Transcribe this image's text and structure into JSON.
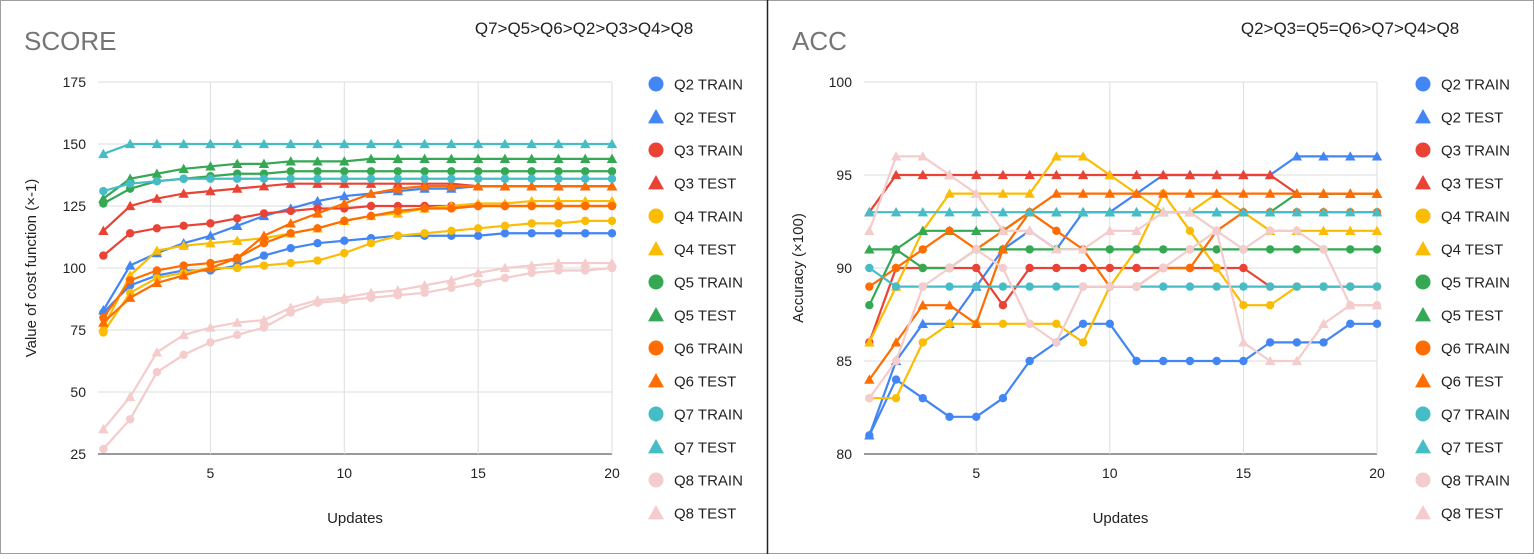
{
  "chart_data": [
    {
      "type": "line",
      "title": "SCORE",
      "subtitle": "Q7>Q5>Q6>Q2>Q3>Q4>Q8",
      "xlabel": "Updates",
      "ylabel": "Value of cost function (×-1)",
      "xlim": [
        0.8,
        20
      ],
      "ylim": [
        25,
        175
      ],
      "xticks": [
        "5",
        "10",
        "15",
        "20"
      ],
      "yticks": [
        "25",
        "50",
        "75",
        "100",
        "125",
        "150",
        "175"
      ],
      "grid": true,
      "legend": "right",
      "x": [
        1,
        2,
        3,
        4,
        5,
        6,
        7,
        8,
        9,
        10,
        11,
        12,
        13,
        14,
        15,
        16,
        17,
        18,
        19,
        20
      ],
      "series": [
        {
          "name": "Q2 TRAIN",
          "marker": "circle",
          "color": "#4285f4",
          "values": [
            82,
            93,
            97,
            99,
            99,
            101,
            105,
            108,
            110,
            111,
            112,
            113,
            113,
            113,
            113,
            114,
            114,
            114,
            114,
            114
          ]
        },
        {
          "name": "Q2 TEST",
          "marker": "triangle",
          "color": "#4285f4",
          "values": [
            83,
            101,
            106,
            110,
            113,
            117,
            121,
            124,
            127,
            129,
            130,
            131,
            132,
            132,
            133,
            133,
            133,
            133,
            133,
            133
          ]
        },
        {
          "name": "Q3 TRAIN",
          "marker": "circle",
          "color": "#ea4335",
          "values": [
            105,
            114,
            116,
            117,
            118,
            120,
            122,
            123,
            124,
            124,
            125,
            125,
            125,
            125,
            125,
            125,
            125,
            125,
            125,
            125
          ]
        },
        {
          "name": "Q3 TEST",
          "marker": "triangle",
          "color": "#ea4335",
          "values": [
            115,
            125,
            128,
            130,
            131,
            132,
            133,
            134,
            134,
            134,
            134,
            134,
            134,
            134,
            133,
            133,
            133,
            133,
            133,
            133
          ]
        },
        {
          "name": "Q4 TRAIN",
          "marker": "circle",
          "color": "#fbbc04",
          "values": [
            74,
            90,
            96,
            98,
            100,
            100,
            101,
            102,
            103,
            106,
            110,
            113,
            114,
            115,
            116,
            117,
            118,
            118,
            119,
            119
          ]
        },
        {
          "name": "Q4 TEST",
          "marker": "triangle",
          "color": "#fbbc04",
          "values": [
            76,
            97,
            107,
            109,
            110,
            111,
            112,
            114,
            116,
            119,
            121,
            122,
            124,
            125,
            126,
            126,
            127,
            127,
            127,
            127
          ]
        },
        {
          "name": "Q5 TRAIN",
          "marker": "circle",
          "color": "#34a853",
          "values": [
            126,
            132,
            135,
            136,
            137,
            138,
            138,
            139,
            139,
            139,
            139,
            139,
            139,
            139,
            139,
            139,
            139,
            139,
            139,
            139
          ]
        },
        {
          "name": "Q5 TEST",
          "marker": "triangle",
          "color": "#34a853",
          "values": [
            128,
            136,
            138,
            140,
            141,
            142,
            142,
            143,
            143,
            143,
            144,
            144,
            144,
            144,
            144,
            144,
            144,
            144,
            144,
            144
          ]
        },
        {
          "name": "Q6 TRAIN",
          "marker": "circle",
          "color": "#ff6d01",
          "values": [
            80,
            95,
            99,
            101,
            102,
            104,
            110,
            114,
            116,
            119,
            121,
            123,
            124,
            124,
            125,
            125,
            125,
            125,
            125,
            125
          ]
        },
        {
          "name": "Q6 TEST",
          "marker": "triangle",
          "color": "#ff6d01",
          "values": [
            78,
            88,
            94,
            97,
            100,
            104,
            113,
            118,
            122,
            126,
            130,
            132,
            133,
            133,
            133,
            133,
            133,
            133,
            133,
            133
          ]
        },
        {
          "name": "Q7 TRAIN",
          "marker": "circle",
          "color": "#46bdc6",
          "values": [
            131,
            134,
            135,
            136,
            136,
            136,
            136,
            136,
            136,
            136,
            136,
            136,
            136,
            136,
            136,
            136,
            136,
            136,
            136,
            136
          ]
        },
        {
          "name": "Q7 TEST",
          "marker": "triangle",
          "color": "#46bdc6",
          "values": [
            146,
            150,
            150,
            150,
            150,
            150,
            150,
            150,
            150,
            150,
            150,
            150,
            150,
            150,
            150,
            150,
            150,
            150,
            150,
            150
          ]
        },
        {
          "name": "Q8 TRAIN",
          "marker": "circle",
          "color": "#f4cccc",
          "values": [
            27,
            39,
            58,
            65,
            70,
            73,
            76,
            82,
            86,
            87,
            88,
            89,
            90,
            92,
            94,
            96,
            98,
            99,
            99,
            100
          ]
        },
        {
          "name": "Q8 TEST",
          "marker": "triangle",
          "color": "#f4cccc",
          "values": [
            35,
            48,
            66,
            73,
            76,
            78,
            79,
            84,
            87,
            88,
            90,
            91,
            93,
            95,
            98,
            100,
            101,
            102,
            102,
            102
          ]
        }
      ]
    },
    {
      "type": "line",
      "title": "ACC",
      "subtitle": "Q2>Q3=Q5=Q6>Q7>Q4>Q8",
      "xlabel": "Updates",
      "ylabel": "Accuracy (×100)",
      "xlim": [
        0.8,
        20
      ],
      "ylim": [
        80,
        100
      ],
      "xticks": [
        "5",
        "10",
        "15",
        "20"
      ],
      "yticks": [
        "80",
        "85",
        "90",
        "95",
        "100"
      ],
      "grid": true,
      "legend": "right",
      "x": [
        1,
        2,
        3,
        4,
        5,
        6,
        7,
        8,
        9,
        10,
        11,
        12,
        13,
        14,
        15,
        16,
        17,
        18,
        19,
        20
      ],
      "series": [
        {
          "name": "Q2 TRAIN",
          "marker": "circle",
          "color": "#4285f4",
          "values": [
            81,
            84,
            83,
            82,
            82,
            83,
            85,
            86,
            87,
            87,
            85,
            85,
            85,
            85,
            85,
            86,
            86,
            86,
            87,
            87
          ]
        },
        {
          "name": "Q2 TEST",
          "marker": "triangle",
          "color": "#4285f4",
          "values": [
            81,
            85,
            87,
            87,
            89,
            91,
            92,
            91,
            93,
            93,
            94,
            95,
            95,
            95,
            95,
            95,
            96,
            96,
            96,
            96
          ]
        },
        {
          "name": "Q3 TRAIN",
          "marker": "circle",
          "color": "#ea4335",
          "values": [
            86,
            90,
            90,
            90,
            90,
            88,
            90,
            90,
            90,
            90,
            90,
            90,
            90,
            90,
            90,
            89,
            89,
            89,
            89,
            89
          ]
        },
        {
          "name": "Q3 TEST",
          "marker": "triangle",
          "color": "#ea4335",
          "values": [
            93,
            95,
            95,
            95,
            95,
            95,
            95,
            95,
            95,
            95,
            95,
            95,
            95,
            95,
            95,
            95,
            94,
            94,
            94,
            94
          ]
        },
        {
          "name": "Q4 TRAIN",
          "marker": "circle",
          "color": "#fbbc04",
          "values": [
            83,
            83,
            86,
            87,
            87,
            87,
            87,
            87,
            86,
            89,
            91,
            94,
            92,
            90,
            88,
            88,
            89,
            89,
            89,
            89
          ]
        },
        {
          "name": "Q4 TEST",
          "marker": "triangle",
          "color": "#fbbc04",
          "values": [
            86,
            89,
            92,
            94,
            94,
            94,
            94,
            96,
            96,
            95,
            94,
            93,
            93,
            94,
            93,
            92,
            92,
            92,
            92,
            92
          ]
        },
        {
          "name": "Q5 TRAIN",
          "marker": "circle",
          "color": "#34a853",
          "values": [
            88,
            91,
            90,
            90,
            91,
            91,
            91,
            91,
            91,
            91,
            91,
            91,
            91,
            91,
            91,
            91,
            91,
            91,
            91,
            91
          ]
        },
        {
          "name": "Q5 TEST",
          "marker": "triangle",
          "color": "#34a853",
          "values": [
            91,
            91,
            92,
            92,
            92,
            92,
            93,
            93,
            93,
            93,
            93,
            93,
            93,
            93,
            93,
            93,
            94,
            94,
            94,
            94
          ]
        },
        {
          "name": "Q6 TRAIN",
          "marker": "circle",
          "color": "#ff6d01",
          "values": [
            89,
            90,
            91,
            92,
            91,
            92,
            93,
            92,
            91,
            89,
            89,
            90,
            90,
            92,
            93,
            93,
            93,
            93,
            93,
            93
          ]
        },
        {
          "name": "Q6 TEST",
          "marker": "triangle",
          "color": "#ff6d01",
          "values": [
            84,
            86,
            88,
            88,
            87,
            91,
            93,
            94,
            94,
            94,
            94,
            94,
            94,
            94,
            94,
            94,
            94,
            94,
            94,
            94
          ]
        },
        {
          "name": "Q7 TRAIN",
          "marker": "circle",
          "color": "#46bdc6",
          "values": [
            90,
            89,
            89,
            89,
            89,
            89,
            89,
            89,
            89,
            89,
            89,
            89,
            89,
            89,
            89,
            89,
            89,
            89,
            89,
            89
          ]
        },
        {
          "name": "Q7 TEST",
          "marker": "triangle",
          "color": "#46bdc6",
          "values": [
            93,
            93,
            93,
            93,
            93,
            93,
            93,
            93,
            93,
            93,
            93,
            93,
            93,
            93,
            93,
            93,
            93,
            93,
            93,
            93
          ]
        },
        {
          "name": "Q8 TRAIN",
          "marker": "circle",
          "color": "#f4cccc",
          "values": [
            83,
            85,
            89,
            90,
            91,
            90,
            87,
            86,
            89,
            89,
            89,
            90,
            91,
            92,
            91,
            92,
            92,
            91,
            88,
            88
          ]
        },
        {
          "name": "Q8 TEST",
          "marker": "triangle",
          "color": "#f4cccc",
          "values": [
            92,
            96,
            96,
            95,
            94,
            92,
            92,
            91,
            91,
            92,
            92,
            93,
            93,
            92,
            86,
            85,
            85,
            87,
            88,
            88
          ]
        }
      ]
    }
  ]
}
